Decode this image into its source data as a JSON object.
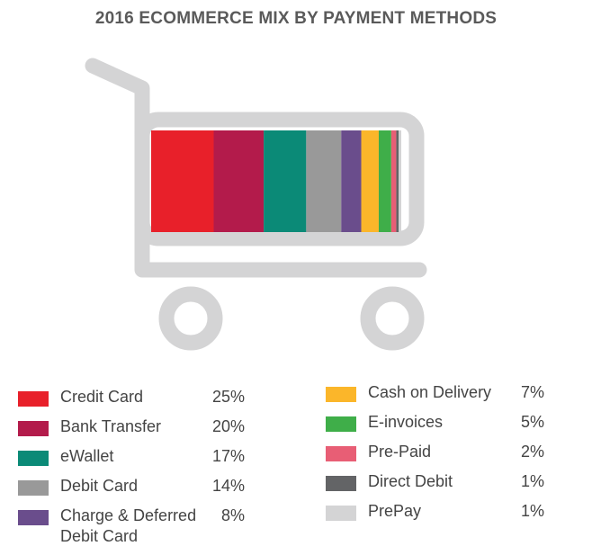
{
  "title": "2016 ECOMMERCE MIX BY PAYMENT METHODS",
  "chart_data": {
    "type": "bar",
    "title": "2016 ECOMMERCE MIX BY PAYMENT METHODS",
    "stacked_100": true,
    "unit": "%",
    "categories": [
      "Credit Card",
      "Bank Transfer",
      "eWallet",
      "Debit Card",
      "Charge & Deferred Debit Card",
      "Cash on Delivery",
      "E-invoices",
      "Pre-Paid",
      "Direct Debit",
      "PrePay"
    ],
    "values": [
      25,
      20,
      17,
      14,
      8,
      7,
      5,
      2,
      1,
      1
    ],
    "labels": [
      "25%",
      "20%",
      "17%",
      "14%",
      "8%",
      "7%",
      "5%",
      "2%",
      "1%",
      "1%"
    ],
    "colors": [
      "#e8202a",
      "#b31b4b",
      "#0b8a77",
      "#999999",
      "#6a4d8c",
      "#fbb62a",
      "#3fae49",
      "#e85e75",
      "#636466",
      "#d4d4d5"
    ],
    "legend": "bottom"
  },
  "cart_color": "#d4d4d5"
}
